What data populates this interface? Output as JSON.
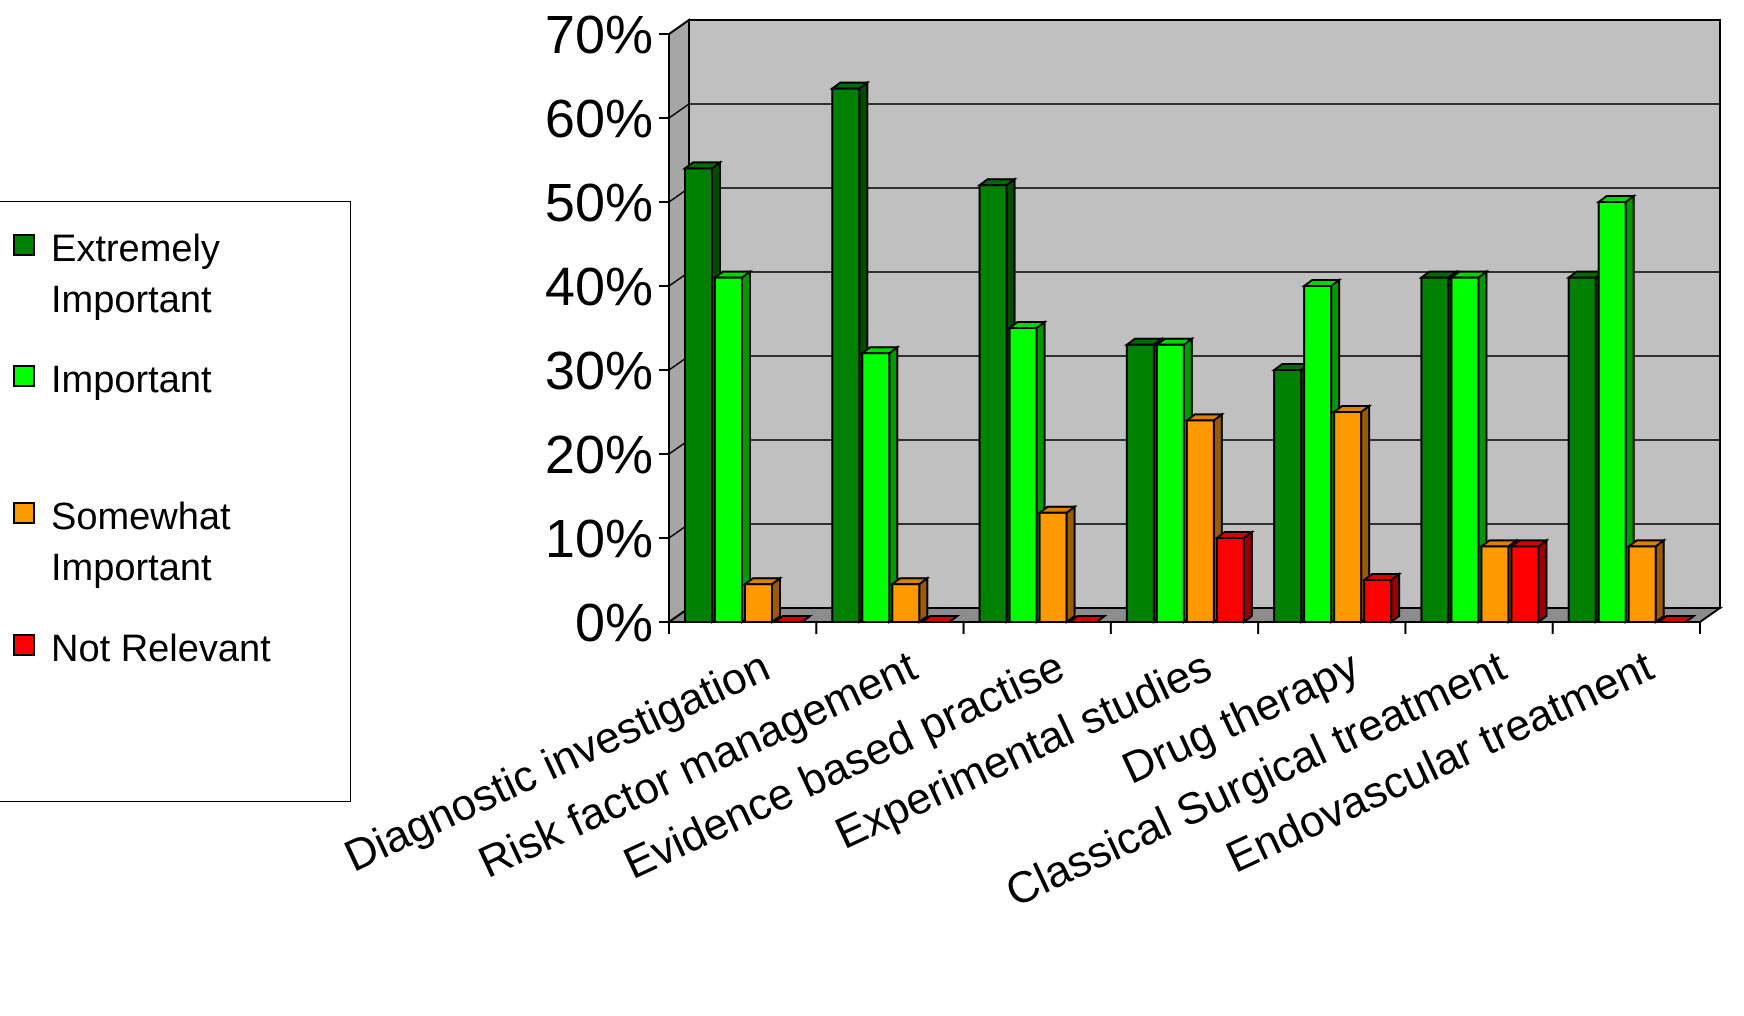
{
  "chart_data": {
    "type": "bar",
    "categories": [
      "Diagnostic investigation",
      "Risk factor management",
      "Evidence based practise",
      "Experimental studies",
      "Drug therapy",
      "Classical Surgical treatment",
      "Endovascular treatment"
    ],
    "series": [
      {
        "name": "Extremely Important",
        "color": "#008000",
        "values": [
          54,
          63.5,
          52,
          33,
          30,
          41,
          41
        ]
      },
      {
        "name": "Important",
        "color": "#00ff00",
        "values": [
          41,
          32,
          35,
          33,
          40,
          41,
          50
        ]
      },
      {
        "name": "Somewhat Important",
        "color": "#ff9900",
        "values": [
          4.5,
          4.5,
          13,
          24,
          25,
          9,
          9
        ]
      },
      {
        "name": "Not Relevant",
        "color": "#ff0000",
        "values": [
          0,
          0,
          0,
          10,
          5,
          9,
          0
        ]
      }
    ],
    "y_ticks": [
      "0%",
      "10%",
      "20%",
      "30%",
      "40%",
      "50%",
      "60%",
      "70%"
    ],
    "ylim": [
      0,
      70
    ],
    "grid": true,
    "legend_position": "left",
    "style": "3d-bar",
    "plot_background": "#c0c0c0"
  }
}
